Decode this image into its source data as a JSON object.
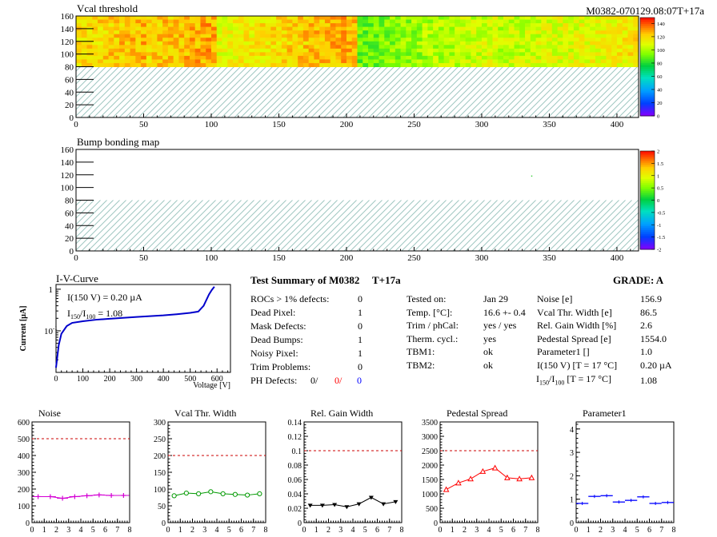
{
  "vcal_map": {
    "title": "Vcal threshold",
    "module_tag": "M0382-070129.08:07T+17a",
    "x_ticks": [
      "0",
      "50",
      "100",
      "150",
      "200",
      "250",
      "300",
      "350",
      "400"
    ],
    "y_ticks": [
      "0",
      "20",
      "40",
      "60",
      "80",
      "100",
      "120",
      "140",
      "160"
    ],
    "palette_ticks": [
      "0",
      "20",
      "40",
      "60",
      "80",
      "100",
      "120",
      "140"
    ]
  },
  "bump_map": {
    "title": "Bump bonding map",
    "x_ticks": [
      "0",
      "50",
      "100",
      "150",
      "200",
      "250",
      "300",
      "350",
      "400"
    ],
    "y_ticks": [
      "0",
      "20",
      "40",
      "60",
      "80",
      "100",
      "120",
      "140",
      "160"
    ],
    "palette_ticks": [
      "-2",
      "-1.5",
      "-1",
      "-0.5",
      "0",
      "0.5",
      "1",
      "1.5",
      "2"
    ]
  },
  "iv": {
    "title": "I-V-Curve",
    "ylabel": "Current [µA]",
    "xlabel": "Voltage [V]",
    "annotation1": "I(150 V) = 0.20 µA",
    "annotation2_main": "I",
    "annotation2_sub1": "150",
    "annotation2_slash": "/I",
    "annotation2_sub2": "100",
    "annotation2_val": "=  1.08",
    "x_ticks": [
      "0",
      "100",
      "200",
      "300",
      "400",
      "500",
      "600"
    ],
    "y_ticks": [
      "10",
      "1"
    ],
    "y_tick_exp": "-1"
  },
  "summary": {
    "title": "Test Summary of M0382",
    "tag": "T+17a",
    "grade": "GRADE:  A",
    "left": [
      {
        "label": "ROCs > 1% defects:",
        "value": "0"
      },
      {
        "label": "Dead Pixel:",
        "value": "1"
      },
      {
        "label": "Mask Defects:",
        "value": "0"
      },
      {
        "label": "Dead Bumps:",
        "value": "1"
      },
      {
        "label": "Noisy Pixel:",
        "value": "1"
      },
      {
        "label": "Trim Problems:",
        "value": "0"
      }
    ],
    "ph_label": "PH Defects:",
    "ph_values": [
      "0/",
      "0/",
      "0"
    ],
    "ph_colors": [
      "#000000",
      "#ff0000",
      "#0000ff"
    ],
    "middle": [
      {
        "label": "Tested on:",
        "value": "Jan 29"
      },
      {
        "label": "Temp. [°C]:",
        "value": "16.6 +- 0.4"
      },
      {
        "label": "Trim / phCal:",
        "value": "yes / yes"
      },
      {
        "label": "Therm. cycl.:",
        "value": "yes"
      },
      {
        "label": "TBM1:",
        "value": "ok"
      },
      {
        "label": "TBM2:",
        "value": "ok"
      }
    ],
    "right": [
      {
        "label": "Noise [e]",
        "value": "156.9"
      },
      {
        "label": "Vcal Thr. Width [e]",
        "value": "86.5"
      },
      {
        "label": "Rel. Gain Width [%]",
        "value": "2.6"
      },
      {
        "label": "Pedestal Spread [e]",
        "value": "1554.0"
      },
      {
        "label": "Parameter1 []",
        "value": "1.0"
      },
      {
        "label": "I(150 V) [T = 17 °C]",
        "value": "0.20 µA"
      }
    ],
    "ratio_row_value": "1.08",
    "ratio_row_tail": "[T = 17 °C]"
  },
  "chart_data": [
    {
      "type": "heatmap",
      "title": "Vcal threshold",
      "xlim": [
        0,
        416
      ],
      "ylim": [
        0,
        160
      ],
      "zlim": [
        0,
        150
      ],
      "filled_region_y": [
        80,
        160
      ],
      "notes_pattern": "lower half (y 0-80) not present, hatched"
    },
    {
      "type": "heatmap",
      "title": "Bump bonding map",
      "xlim": [
        0,
        416
      ],
      "ylim": [
        0,
        160
      ],
      "zlim": [
        -2,
        2
      ],
      "points": [
        {
          "x": 337,
          "y": 118
        }
      ],
      "filled_region_y": [
        80,
        160
      ]
    },
    {
      "type": "line",
      "title": "I-V-Curve",
      "xlabel": "Voltage [V]",
      "ylabel": "Current [µA]",
      "xlim": [
        0,
        650
      ],
      "ylim": [
        0.01,
        1.3
      ],
      "log_y": true,
      "x": [
        0,
        10,
        20,
        40,
        60,
        100,
        150,
        200,
        250,
        300,
        350,
        400,
        450,
        500,
        530,
        550,
        570,
        580,
        590
      ],
      "y": [
        0.013,
        0.045,
        0.085,
        0.13,
        0.155,
        0.17,
        0.185,
        0.195,
        0.205,
        0.215,
        0.225,
        0.235,
        0.25,
        0.27,
        0.29,
        0.4,
        0.75,
        0.95,
        1.15
      ]
    },
    {
      "type": "line",
      "title": "Noise",
      "xlim": [
        0,
        8
      ],
      "ylim": [
        0,
        600
      ],
      "yticks": [
        "0",
        "100",
        "200",
        "300",
        "400",
        "500",
        "600"
      ],
      "threshold": 500,
      "color": "#d400d4",
      "marker": "cross",
      "x": [
        0.5,
        1.5,
        2.5,
        3.5,
        4.5,
        5.5,
        6.5,
        7.5
      ],
      "values": [
        155,
        155,
        145,
        155,
        160,
        165,
        162,
        162
      ]
    },
    {
      "type": "line",
      "title": "Vcal Thr. Width",
      "xlim": [
        0,
        8
      ],
      "ylim": [
        0,
        300
      ],
      "yticks": [
        "0",
        "50",
        "100",
        "150",
        "200",
        "250",
        "300"
      ],
      "threshold": 200,
      "color": "#009900",
      "marker": "circle",
      "x": [
        0.5,
        1.5,
        2.5,
        3.5,
        4.5,
        5.5,
        6.5,
        7.5
      ],
      "values": [
        80,
        88,
        86,
        92,
        86,
        84,
        82,
        86
      ]
    },
    {
      "type": "line",
      "title": "Rel. Gain Width",
      "xlim": [
        0,
        8
      ],
      "ylim": [
        0,
        0.14
      ],
      "yticks": [
        "0",
        "0.02",
        "0.04",
        "0.06",
        "0.08",
        "0.1",
        "0.12",
        "0.14"
      ],
      "threshold": 0.1,
      "color": "#000000",
      "marker": "triangle-down",
      "x": [
        0.5,
        1.5,
        2.5,
        3.5,
        4.5,
        5.5,
        6.5,
        7.5
      ],
      "values": [
        0.024,
        0.024,
        0.025,
        0.022,
        0.026,
        0.035,
        0.026,
        0.029
      ]
    },
    {
      "type": "line",
      "title": "Pedestal Spread",
      "xlim": [
        0,
        8
      ],
      "ylim": [
        0,
        3500
      ],
      "yticks": [
        "0",
        "500",
        "1000",
        "1500",
        "2000",
        "2500",
        "3000",
        "3500"
      ],
      "threshold": 2500,
      "color": "#ff0000",
      "marker": "triangle-up",
      "x": [
        0.5,
        1.5,
        2.5,
        3.5,
        4.5,
        5.5,
        6.5,
        7.5
      ],
      "values": [
        1150,
        1380,
        1520,
        1780,
        1900,
        1560,
        1520,
        1560
      ]
    },
    {
      "type": "line",
      "title": "Parameter1",
      "xlim": [
        0,
        8
      ],
      "ylim": [
        0,
        4.3
      ],
      "yticks": [
        "0",
        "1",
        "2",
        "3",
        "4"
      ],
      "color": "#0000ff",
      "marker": "hbar",
      "connect": false,
      "x": [
        0.5,
        1.5,
        2.5,
        3.5,
        4.5,
        5.5,
        6.5,
        7.5
      ],
      "values": [
        0.82,
        1.12,
        1.15,
        0.88,
        0.95,
        1.1,
        0.82,
        0.86
      ]
    }
  ],
  "colors": {
    "hatch": "#9fc7c1",
    "threshold_line": "#cc0000"
  },
  "small_x_ticks": [
    "0",
    "1",
    "2",
    "3",
    "4",
    "5",
    "6",
    "7",
    "8"
  ]
}
